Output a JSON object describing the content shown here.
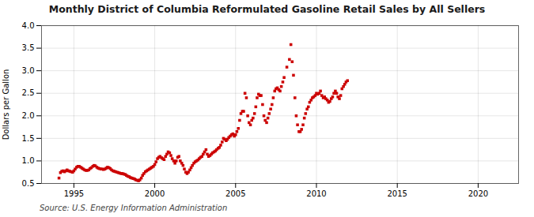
{
  "chart_data": {
    "type": "scatter",
    "title": "Monthly District of Columbia Reformulated Gasoline Retail Sales by All Sellers",
    "ylabel": "Dollars per Gallon",
    "source": "Source: U.S. Energy Information Administration",
    "color": "#cc0000",
    "marker": "square",
    "grid": true,
    "xlim": [
      1993.0,
      2022.5
    ],
    "ylim": [
      0.5,
      4.0
    ],
    "xticks": [
      1995,
      2000,
      2005,
      2010,
      2015,
      2020
    ],
    "yticks": [
      0.5,
      {
        "value": 1.0,
        "label": "1.0"
      },
      1.5,
      {
        "value": 2.0,
        "label": "2.0"
      },
      2.5,
      {
        "value": 3.0,
        "label": "3.0"
      },
      3.5,
      {
        "value": 4.0,
        "label": "4.0"
      }
    ],
    "x": [
      1994.08,
      1994.17,
      1994.25,
      1994.33,
      1994.42,
      1994.5,
      1994.58,
      1994.67,
      1994.75,
      1994.83,
      1994.92,
      1995.0,
      1995.08,
      1995.17,
      1995.25,
      1995.33,
      1995.42,
      1995.5,
      1995.58,
      1995.67,
      1995.75,
      1995.83,
      1995.92,
      1996.0,
      1996.08,
      1996.17,
      1996.25,
      1996.33,
      1996.42,
      1996.5,
      1996.58,
      1996.67,
      1996.75,
      1996.83,
      1996.92,
      1997.0,
      1997.08,
      1997.17,
      1997.25,
      1997.33,
      1997.42,
      1997.5,
      1997.58,
      1997.67,
      1997.75,
      1997.83,
      1997.92,
      1998.0,
      1998.08,
      1998.17,
      1998.25,
      1998.33,
      1998.42,
      1998.5,
      1998.58,
      1998.67,
      1998.75,
      1998.83,
      1998.92,
      1999.0,
      1999.08,
      1999.17,
      1999.25,
      1999.33,
      1999.42,
      1999.5,
      1999.58,
      1999.67,
      1999.75,
      1999.83,
      1999.92,
      2000.0,
      2000.08,
      2000.17,
      2000.25,
      2000.33,
      2000.42,
      2000.5,
      2000.58,
      2000.67,
      2000.75,
      2000.83,
      2000.92,
      2001.0,
      2001.08,
      2001.17,
      2001.25,
      2001.33,
      2001.42,
      2001.5,
      2001.58,
      2001.67,
      2001.75,
      2001.83,
      2001.92,
      2002.0,
      2002.08,
      2002.17,
      2002.25,
      2002.33,
      2002.42,
      2002.5,
      2002.58,
      2002.67,
      2002.75,
      2002.83,
      2002.92,
      2003.0,
      2003.08,
      2003.17,
      2003.25,
      2003.33,
      2003.42,
      2003.5,
      2003.58,
      2003.67,
      2003.75,
      2003.83,
      2003.92,
      2004.0,
      2004.08,
      2004.17,
      2004.25,
      2004.33,
      2004.42,
      2004.5,
      2004.58,
      2004.67,
      2004.75,
      2004.83,
      2004.92,
      2005.0,
      2005.08,
      2005.17,
      2005.25,
      2005.33,
      2005.42,
      2005.5,
      2005.58,
      2005.67,
      2005.75,
      2005.83,
      2005.92,
      2006.0,
      2006.08,
      2006.17,
      2006.25,
      2006.33,
      2006.42,
      2006.5,
      2006.58,
      2006.67,
      2006.75,
      2006.83,
      2006.92,
      2007.0,
      2007.08,
      2007.17,
      2007.25,
      2007.33,
      2007.42,
      2007.5,
      2007.58,
      2007.67,
      2007.75,
      2007.83,
      2007.92,
      2008.0,
      2008.17,
      2008.33,
      2008.42,
      2008.5,
      2008.58,
      2008.67,
      2008.75,
      2008.83,
      2008.92,
      2009.0,
      2009.08,
      2009.17,
      2009.25,
      2009.33,
      2009.42,
      2009.5,
      2009.58,
      2009.67,
      2009.75,
      2009.83,
      2009.92,
      2010.0,
      2010.08,
      2010.17,
      2010.25,
      2010.33,
      2010.42,
      2010.5,
      2010.58,
      2010.67,
      2010.75,
      2010.83,
      2010.92,
      2011.0,
      2011.08,
      2011.17,
      2011.25,
      2011.33,
      2011.42,
      2011.5,
      2011.58,
      2011.67,
      2011.75,
      2011.83,
      2011.92
    ],
    "values": [
      0.62,
      0.74,
      0.77,
      0.78,
      0.76,
      0.78,
      0.8,
      0.78,
      0.77,
      0.76,
      0.75,
      0.78,
      0.82,
      0.86,
      0.88,
      0.88,
      0.86,
      0.84,
      0.82,
      0.8,
      0.79,
      0.79,
      0.8,
      0.83,
      0.85,
      0.88,
      0.9,
      0.89,
      0.86,
      0.84,
      0.83,
      0.82,
      0.82,
      0.81,
      0.82,
      0.84,
      0.86,
      0.85,
      0.83,
      0.8,
      0.78,
      0.77,
      0.76,
      0.75,
      0.74,
      0.73,
      0.72,
      0.72,
      0.71,
      0.7,
      0.68,
      0.66,
      0.65,
      0.63,
      0.62,
      0.61,
      0.6,
      0.58,
      0.57,
      0.56,
      0.58,
      0.62,
      0.68,
      0.72,
      0.76,
      0.78,
      0.8,
      0.82,
      0.84,
      0.86,
      0.88,
      0.92,
      0.98,
      1.05,
      1.08,
      1.1,
      1.07,
      1.05,
      1.03,
      1.1,
      1.15,
      1.2,
      1.18,
      1.12,
      1.05,
      1.0,
      0.95,
      1.0,
      1.08,
      1.1,
      1.0,
      0.95,
      0.9,
      0.82,
      0.75,
      0.72,
      0.75,
      0.8,
      0.85,
      0.9,
      0.95,
      0.98,
      1.0,
      1.02,
      1.05,
      1.08,
      1.1,
      1.15,
      1.2,
      1.25,
      1.15,
      1.1,
      1.12,
      1.15,
      1.18,
      1.2,
      1.22,
      1.25,
      1.28,
      1.3,
      1.35,
      1.42,
      1.5,
      1.48,
      1.45,
      1.48,
      1.52,
      1.55,
      1.58,
      1.6,
      1.55,
      1.58,
      1.65,
      1.72,
      1.9,
      2.05,
      2.1,
      2.1,
      2.5,
      2.4,
      2.0,
      1.85,
      1.8,
      1.9,
      1.95,
      2.05,
      2.2,
      2.4,
      2.48,
      2.45,
      2.45,
      2.25,
      2.0,
      1.9,
      1.85,
      1.95,
      2.05,
      2.15,
      2.25,
      2.4,
      2.55,
      2.6,
      2.62,
      2.58,
      2.55,
      2.65,
      2.75,
      2.85,
      3.08,
      3.25,
      3.58,
      3.2,
      2.9,
      2.4,
      2.0,
      1.8,
      1.65,
      1.65,
      1.7,
      1.8,
      1.95,
      2.05,
      2.15,
      2.2,
      2.3,
      2.35,
      2.4,
      2.42,
      2.45,
      2.5,
      2.48,
      2.5,
      2.55,
      2.45,
      2.4,
      2.42,
      2.38,
      2.35,
      2.3,
      2.32,
      2.38,
      2.42,
      2.5,
      2.55,
      2.5,
      2.42,
      2.38,
      2.45,
      2.6,
      2.65,
      2.7,
      2.75,
      2.78
    ]
  }
}
